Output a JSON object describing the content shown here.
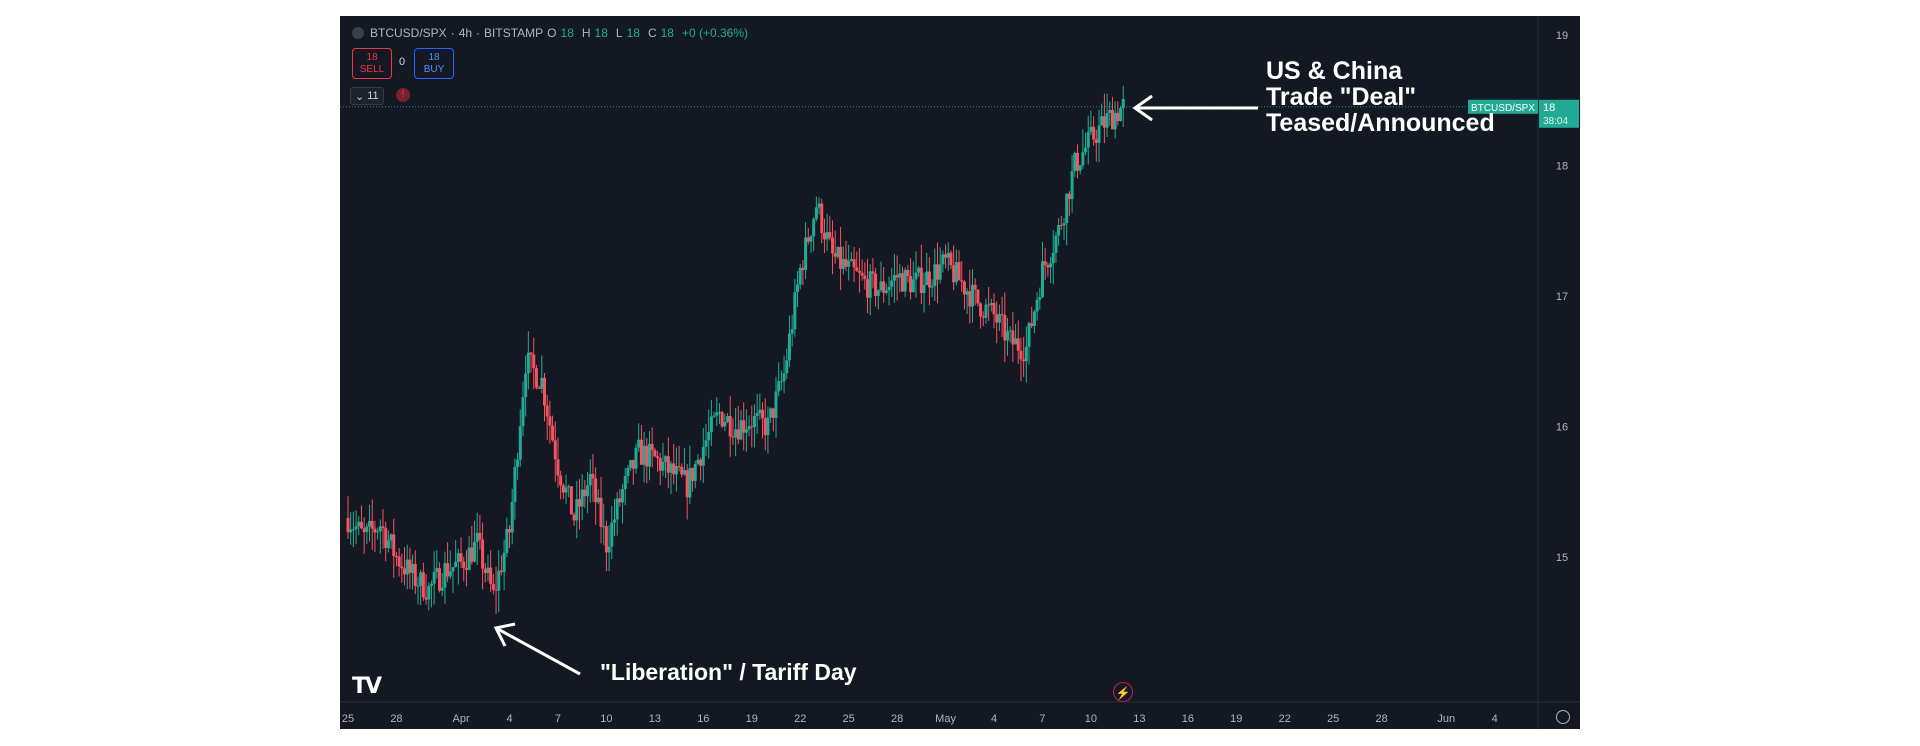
{
  "header": {
    "symbol": "BTCUSD/SPX",
    "interval": "4h",
    "exchange": "BITSTAMP",
    "o_label": "O",
    "o_val": "18",
    "h_label": "H",
    "h_val": "18",
    "l_label": "L",
    "l_val": "18",
    "c_label": "C",
    "c_val": "18",
    "change": "+0 (+0.36%)"
  },
  "trade": {
    "sell_price": "18",
    "sell_label": "SELL",
    "spread": "0",
    "buy_price": "18",
    "buy_label": "BUY"
  },
  "indicators_toggle": "11",
  "price_tag": {
    "symbol": "BTCUSD/SPX",
    "price": "18",
    "countdown": "38:04"
  },
  "annotations": {
    "top": [
      "US & China",
      "Trade \"Deal\"",
      "Teased/Announced"
    ],
    "bottom": "\"Liberation\" / Tariff Day"
  },
  "colors": {
    "background": "#141823",
    "up": "#22ab94",
    "down": "#f7525f",
    "annotation": "#ffffff"
  },
  "icons": [
    "tradingview-logo-icon",
    "lightning-icon",
    "settings-icon",
    "chevron-down-icon",
    "alert-icon"
  ],
  "chart_data": {
    "type": "candlestick",
    "y_ticks": [
      15,
      16,
      17,
      18,
      19
    ],
    "ylim": [
      14.3,
      19.2
    ],
    "x_ticks": [
      "25",
      "28",
      "Apr",
      "4",
      "7",
      "10",
      "13",
      "16",
      "19",
      "22",
      "25",
      "28",
      "May",
      "4",
      "7",
      "10",
      "13",
      "16",
      "19",
      "22",
      "25",
      "28",
      "Jun",
      "4"
    ],
    "x_tick_dates": [
      "2025-03-25",
      "2025-03-28",
      "2025-04-01",
      "2025-04-04",
      "2025-04-07",
      "2025-04-10",
      "2025-04-13",
      "2025-04-16",
      "2025-04-19",
      "2025-04-22",
      "2025-04-25",
      "2025-04-28",
      "2025-05-01",
      "2025-05-04",
      "2025-05-07",
      "2025-05-10",
      "2025-05-13",
      "2025-05-16",
      "2025-05-19",
      "2025-05-22",
      "2025-05-25",
      "2025-05-28",
      "2025-06-01",
      "2025-06-04"
    ],
    "xlim": [
      "2025-03-25",
      "2025-06-06"
    ],
    "last_price": 18.45,
    "close_path": [
      [
        "2025-03-25",
        15.3
      ],
      [
        "2025-03-26",
        15.15
      ],
      [
        "2025-03-27",
        15.25
      ],
      [
        "2025-03-28",
        15.0
      ],
      [
        "2025-03-29",
        14.85
      ],
      [
        "2025-03-30",
        14.75
      ],
      [
        "2025-03-31",
        14.9
      ],
      [
        "2025-04-01",
        14.95
      ],
      [
        "2025-04-02",
        15.1
      ],
      [
        "2025-04-03",
        14.7
      ],
      [
        "2025-04-04",
        15.2
      ],
      [
        "2025-04-05",
        16.5
      ],
      [
        "2025-04-06",
        16.35
      ],
      [
        "2025-04-07",
        15.7
      ],
      [
        "2025-04-08",
        15.3
      ],
      [
        "2025-04-09",
        15.6
      ],
      [
        "2025-04-10",
        15.1
      ],
      [
        "2025-04-11",
        15.5
      ],
      [
        "2025-04-12",
        15.8
      ],
      [
        "2025-04-13",
        15.75
      ],
      [
        "2025-04-14",
        15.65
      ],
      [
        "2025-04-15",
        15.55
      ],
      [
        "2025-04-16",
        15.85
      ],
      [
        "2025-04-17",
        16.1
      ],
      [
        "2025-04-18",
        16.0
      ],
      [
        "2025-04-19",
        16.05
      ],
      [
        "2025-04-20",
        16.0
      ],
      [
        "2025-04-21",
        16.4
      ],
      [
        "2025-04-22",
        17.2
      ],
      [
        "2025-04-23",
        17.7
      ],
      [
        "2025-04-24",
        17.3
      ],
      [
        "2025-04-25",
        17.2
      ],
      [
        "2025-04-26",
        17.1
      ],
      [
        "2025-04-27",
        17.05
      ],
      [
        "2025-04-28",
        17.15
      ],
      [
        "2025-04-29",
        17.1
      ],
      [
        "2025-04-30",
        17.15
      ],
      [
        "2025-05-01",
        17.25
      ],
      [
        "2025-05-02",
        17.1
      ],
      [
        "2025-05-03",
        16.95
      ],
      [
        "2025-05-04",
        16.85
      ],
      [
        "2025-05-05",
        16.65
      ],
      [
        "2025-05-06",
        16.6
      ],
      [
        "2025-05-07",
        17.2
      ],
      [
        "2025-05-08",
        17.5
      ],
      [
        "2025-05-09",
        18.0
      ],
      [
        "2025-05-10",
        18.2
      ],
      [
        "2025-05-11",
        18.35
      ],
      [
        "2025-05-12",
        18.45
      ]
    ]
  }
}
